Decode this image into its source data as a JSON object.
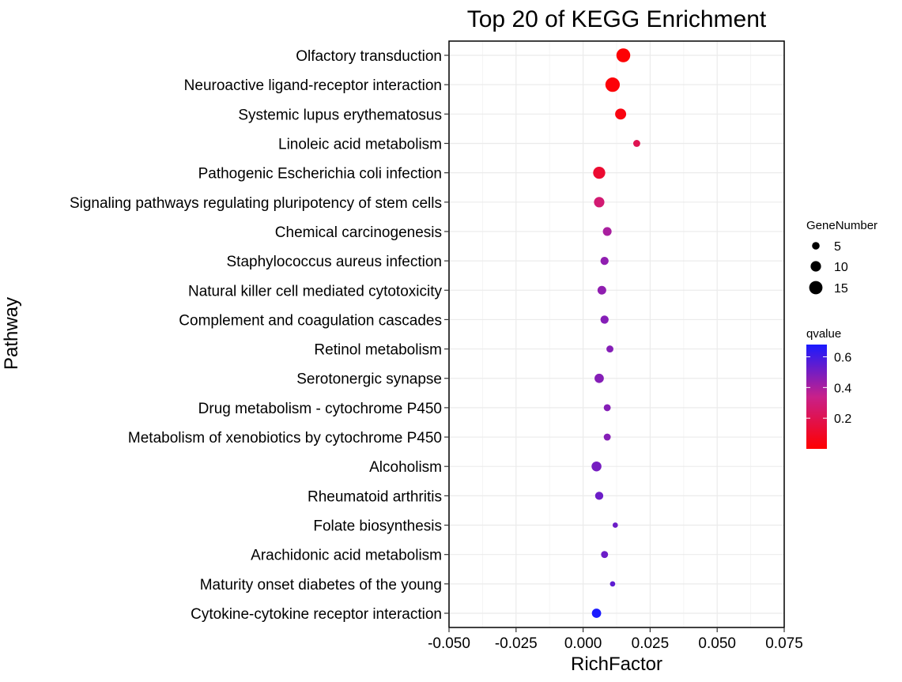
{
  "chart_data": {
    "type": "scatter",
    "title": "Top 20 of KEGG Enrichment",
    "xlabel": "RichFactor",
    "ylabel": "Pathway",
    "xlim": [
      -0.05,
      0.075
    ],
    "xticks": [
      "-0.050",
      "-0.025",
      "0.000",
      "0.025",
      "0.050",
      "0.075"
    ],
    "xtick_values": [
      -0.05,
      -0.025,
      0,
      0.025,
      0.05,
      0.075
    ],
    "grid": true,
    "legend_position": "right",
    "size_legend": {
      "title": "GeneNumber",
      "entries": [
        5,
        10,
        15
      ],
      "labels": [
        "5",
        "10",
        "15"
      ]
    },
    "color_legend": {
      "title": "qvalue",
      "ticks": [
        0.6,
        0.4,
        0.2
      ],
      "labels": [
        "0.6",
        "0.4",
        "0.2"
      ],
      "range": [
        0.0,
        0.68
      ],
      "low_color": "#ff0000",
      "high_color": "#1a1aff"
    },
    "points": [
      {
        "pathway": "Olfactory transduction",
        "rich_factor": 0.015,
        "gene_number": 16,
        "qvalue": 0.01
      },
      {
        "pathway": "Neuroactive ligand-receptor interaction",
        "rich_factor": 0.011,
        "gene_number": 17,
        "qvalue": 0.02
      },
      {
        "pathway": "Systemic lupus erythematosus",
        "rich_factor": 0.014,
        "gene_number": 11,
        "qvalue": 0.04
      },
      {
        "pathway": "Linoleic acid metabolism",
        "rich_factor": 0.02,
        "gene_number": 4,
        "qvalue": 0.2
      },
      {
        "pathway": "Pathogenic Escherichia coli infection",
        "rich_factor": 0.006,
        "gene_number": 13,
        "qvalue": 0.12
      },
      {
        "pathway": "Signaling pathways regulating pluripotency of stem cells",
        "rich_factor": 0.006,
        "gene_number": 10,
        "qvalue": 0.28
      },
      {
        "pathway": "Chemical carcinogenesis",
        "rich_factor": 0.009,
        "gene_number": 7,
        "qvalue": 0.4
      },
      {
        "pathway": "Staphylococcus aureus infection",
        "rich_factor": 0.008,
        "gene_number": 6,
        "qvalue": 0.45
      },
      {
        "pathway": "Natural killer cell mediated cytotoxicity",
        "rich_factor": 0.007,
        "gene_number": 7,
        "qvalue": 0.45
      },
      {
        "pathway": "Complement and coagulation cascades",
        "rich_factor": 0.008,
        "gene_number": 6,
        "qvalue": 0.47
      },
      {
        "pathway": "Retinol metabolism",
        "rich_factor": 0.01,
        "gene_number": 4,
        "qvalue": 0.47
      },
      {
        "pathway": "Serotonergic synapse",
        "rich_factor": 0.006,
        "gene_number": 8,
        "qvalue": 0.47
      },
      {
        "pathway": "Drug metabolism - cytochrome P450",
        "rich_factor": 0.009,
        "gene_number": 4,
        "qvalue": 0.47
      },
      {
        "pathway": "Metabolism of xenobiotics by cytochrome P450",
        "rich_factor": 0.009,
        "gene_number": 4,
        "qvalue": 0.47
      },
      {
        "pathway": "Alcoholism",
        "rich_factor": 0.005,
        "gene_number": 9,
        "qvalue": 0.5
      },
      {
        "pathway": "Rheumatoid arthritis",
        "rich_factor": 0.006,
        "gene_number": 6,
        "qvalue": 0.52
      },
      {
        "pathway": "Folate biosynthesis",
        "rich_factor": 0.012,
        "gene_number": 1,
        "qvalue": 0.52
      },
      {
        "pathway": "Arachidonic acid metabolism",
        "rich_factor": 0.008,
        "gene_number": 4,
        "qvalue": 0.52
      },
      {
        "pathway": "Maturity onset diabetes of the young",
        "rich_factor": 0.011,
        "gene_number": 1,
        "qvalue": 0.55
      },
      {
        "pathway": "Cytokine-cytokine receptor interaction",
        "rich_factor": 0.005,
        "gene_number": 8,
        "qvalue": 0.68
      }
    ]
  }
}
